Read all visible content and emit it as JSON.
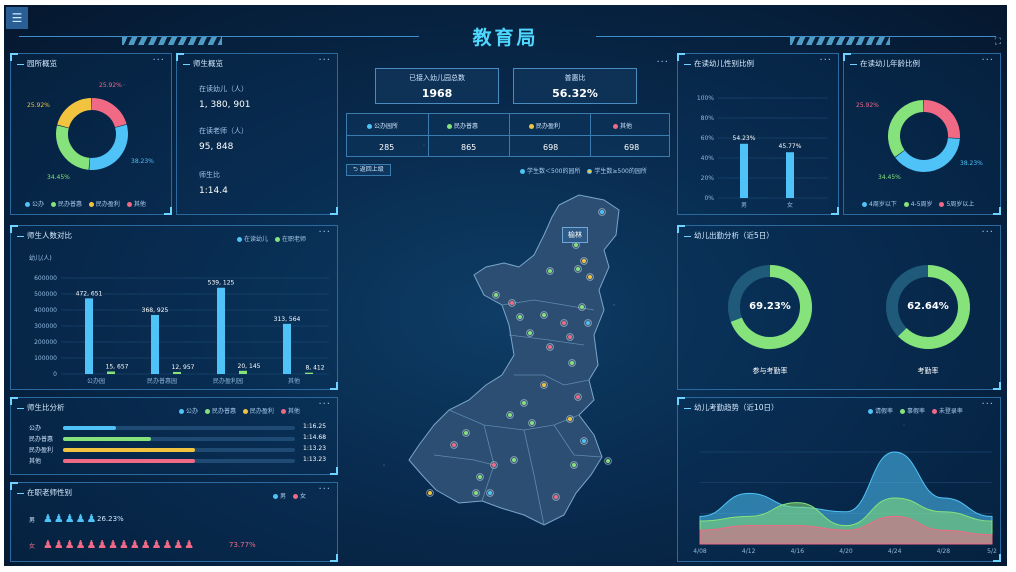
{
  "header": {
    "title": "教育局",
    "menu_icon": "menu-icon",
    "expand_icon": "expand-icon"
  },
  "colors": {
    "blue": "#4fc3f7",
    "green": "#86e27a",
    "yellow": "#f1c33e",
    "pink": "#f06a86",
    "accent": "#4fd8ff"
  },
  "overview": {
    "title": "园所概览",
    "more": "···",
    "slices": [
      {
        "label": "25.92%",
        "value": 25.92,
        "color": "#f06a86"
      },
      {
        "label": "38.23%",
        "value": 38.23,
        "color": "#4fc3f7"
      },
      {
        "label": "34.45%",
        "value": 34.45,
        "color": "#86e27a"
      },
      {
        "label": "25.92%",
        "value": 25.92,
        "color": "#f1c33e"
      }
    ],
    "legend": [
      "公办",
      "民办普惠",
      "民办盈利",
      "其他"
    ]
  },
  "teachers": {
    "title": "师生概览",
    "more": "···",
    "kids_label": "在读幼儿（人）",
    "kids_value": "1, 380, 901",
    "teachers_label": "在读老师（人）",
    "teachers_value": "95, 848",
    "ratio_label": "师生比",
    "ratio_value": "1:14.4"
  },
  "center": {
    "more": "···",
    "access_label": "已接入幼儿园总数",
    "access_value": "1968",
    "pop_label": "普惠比",
    "pop_value": "56.32%",
    "types": [
      {
        "label": "公办园所",
        "value": "285",
        "color": "#4fc3f7"
      },
      {
        "label": "民办普惠",
        "value": "865",
        "color": "#86e27a"
      },
      {
        "label": "民办盈利",
        "value": "698",
        "color": "#f1c33e"
      },
      {
        "label": "其他",
        "value": "698",
        "color": "#f06a86"
      }
    ],
    "back_label": "返回上级",
    "map_legend": [
      "学生数＜500的园所",
      "学生数≥500的园所"
    ],
    "city_label": "榆林"
  },
  "gender_ratio": {
    "title": "在读幼儿性别比例",
    "more": "···",
    "yticks": [
      "100%",
      "80%",
      "60%",
      "40%",
      "20%",
      "0%"
    ],
    "categories": [
      "男",
      "女"
    ]
  },
  "age_ratio": {
    "title": "在读幼儿年龄比例",
    "more": "···",
    "slices": [
      {
        "label": "25.92%",
        "value": 25.92,
        "color": "#f06a86"
      },
      {
        "label": "38.23%",
        "value": 38.23,
        "color": "#4fc3f7"
      },
      {
        "label": "34.45%",
        "value": 34.45,
        "color": "#86e27a"
      }
    ],
    "legend": [
      "4周岁以下",
      "4-5周岁",
      "5周岁以上"
    ]
  },
  "teacher_student": {
    "title": "师生人数对比",
    "more": "···",
    "legend": [
      "在读幼儿",
      "在职老师"
    ],
    "unit": "幼儿(人)",
    "yticks": [
      "600000",
      "500000",
      "400000",
      "300000",
      "200000",
      "100000",
      "0"
    ]
  },
  "attendance": {
    "title": "幼儿出勤分析（近5日）",
    "more": "···",
    "rings": [
      {
        "value": "69.23%",
        "pct": 69.23,
        "label": "参与考勤率"
      },
      {
        "value": "62.64%",
        "pct": 62.64,
        "label": "考勤率"
      }
    ]
  },
  "ratio_analysis": {
    "title": "师生比分析",
    "more": "···",
    "legend": [
      "公办",
      "民办普惠",
      "民办盈利",
      "其他"
    ],
    "rows": [
      {
        "label": "公办",
        "value": "1:16.25",
        "fill": 0.23,
        "color": "#4fc3f7"
      },
      {
        "label": "民办普惠",
        "value": "1:14.68",
        "fill": 0.38,
        "color": "#86e27a"
      },
      {
        "label": "民办盈利",
        "value": "1:13.23",
        "fill": 0.57,
        "color": "#f1c33e"
      },
      {
        "label": "其他",
        "value": "1:13.23",
        "fill": 0.57,
        "color": "#f06a86"
      }
    ]
  },
  "teacher_gender": {
    "title": "在职老师性别",
    "more": "···",
    "legend": [
      "男",
      "女"
    ],
    "male_label": "男",
    "male_pct": "26.23%",
    "male_count": 5,
    "female_label": "女",
    "female_pct": "73.77%",
    "female_count": 14
  },
  "trend": {
    "title": "幼儿考勤趋势（近10日）",
    "more": "···",
    "legend": [
      "请假率",
      "事假率",
      "未登录率"
    ],
    "xticks": [
      "4/08",
      "4/12",
      "4/16",
      "4/20",
      "4/24",
      "4/28",
      "5/2"
    ]
  },
  "chart_data": [
    {
      "type": "bar",
      "title": "在读幼儿性别比例",
      "categories": [
        "男",
        "女"
      ],
      "values": [
        54.23,
        45.77
      ],
      "data_labels": [
        "54.23%",
        "45.77%"
      ],
      "ylim": [
        0,
        100
      ]
    },
    {
      "type": "bar",
      "title": "师生人数对比",
      "ylabel": "幼儿(人)",
      "categories": [
        "公办园",
        "民办普惠园",
        "民办盈利园",
        "其他"
      ],
      "ylim": [
        0,
        600000
      ],
      "series": [
        {
          "name": "在读幼儿",
          "values": [
            472651,
            368925,
            539125,
            313564
          ],
          "labels": [
            "472, 651",
            "368, 925",
            "539, 125",
            "313, 564"
          ]
        },
        {
          "name": "在职老师",
          "values": [
            15657,
            12957,
            20145,
            8412
          ],
          "labels": [
            "15, 657",
            "12, 957",
            "20, 145",
            "8, 412"
          ]
        }
      ]
    },
    {
      "type": "area",
      "title": "幼儿考勤趋势（近10日）",
      "x": [
        "4/08",
        "4/12",
        "4/16",
        "4/20",
        "4/24",
        "4/28",
        "5/2"
      ],
      "series": [
        {
          "name": "请假率",
          "values": [
            0.3,
            0.55,
            0.4,
            0.35,
            1.0,
            0.5,
            0.3
          ]
        },
        {
          "name": "事假率",
          "values": [
            0.25,
            0.3,
            0.45,
            0.2,
            0.5,
            0.35,
            0.25
          ]
        },
        {
          "name": "未登录率",
          "values": [
            0.15,
            0.2,
            0.2,
            0.15,
            0.3,
            0.15,
            0.1
          ]
        }
      ]
    }
  ]
}
